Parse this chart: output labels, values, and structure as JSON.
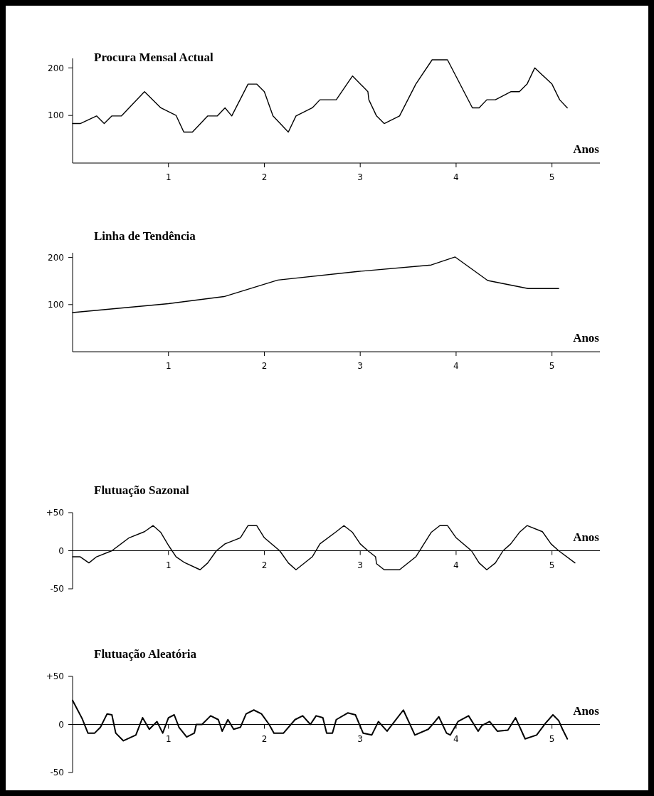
{
  "chart_data": [
    {
      "type": "line",
      "title": "Procura Mensal Actual",
      "xlabel": "Anos",
      "color": "#000000",
      "xlim": [
        0,
        5.5
      ],
      "xticks": [
        1,
        2,
        3,
        4,
        5
      ],
      "ylim": [
        0,
        220
      ],
      "yticks": [
        100,
        200
      ],
      "x": [
        0,
        0.08,
        0.25,
        0.33,
        0.41,
        0.51,
        0.75,
        0.92,
        1.08,
        1.16,
        1.25,
        1.41,
        1.51,
        1.59,
        1.66,
        1.83,
        1.92,
        2.0,
        2.09,
        2.25,
        2.33,
        2.5,
        2.58,
        2.75,
        2.92,
        3.08,
        3.09,
        3.17,
        3.25,
        3.41,
        3.58,
        3.75,
        3.91,
        4.17,
        4.24,
        4.32,
        4.41,
        4.57,
        4.66,
        4.74,
        4.82,
        5.0,
        5.08,
        5.16
      ],
      "values": [
        83,
        83,
        99,
        83,
        99,
        99,
        150,
        116,
        100,
        65,
        65,
        99,
        99,
        116,
        99,
        166,
        166,
        150,
        99,
        65,
        99,
        116,
        133,
        133,
        183,
        150,
        133,
        99,
        83,
        99,
        166,
        217,
        217,
        116,
        116,
        133,
        133,
        150,
        150,
        166,
        200,
        166,
        133,
        116
      ]
    },
    {
      "type": "line",
      "title": "Linha de Tendência",
      "xlabel": "Anos",
      "color": "#000000",
      "xlim": [
        0,
        5.5
      ],
      "xticks": [
        1,
        2,
        3,
        4,
        5
      ],
      "ylim": [
        0,
        210
      ],
      "yticks": [
        100,
        200
      ],
      "x": [
        0,
        1,
        1.58,
        2.14,
        2.96,
        3.74,
        3.99,
        4.33,
        4.75,
        5.07
      ],
      "values": [
        83,
        102,
        117,
        152,
        170,
        184,
        201,
        151,
        134,
        134
      ]
    },
    {
      "type": "line",
      "title": "Flutuação Sazonal",
      "xlabel": "Anos",
      "color": "#000000",
      "xlim": [
        0,
        5.5
      ],
      "xticks": [
        1,
        2,
        3,
        4,
        5
      ],
      "ylim": [
        -50,
        50
      ],
      "yticks": [
        {
          "value": 50,
          "label": "+50"
        },
        0,
        -50
      ],
      "x": [
        0,
        0.08,
        0.17,
        0.25,
        0.41,
        0.59,
        0.75,
        0.84,
        0.92,
        1.0,
        1.08,
        1.16,
        1.33,
        1.41,
        1.5,
        1.59,
        1.75,
        1.83,
        1.92,
        2.0,
        2.16,
        2.25,
        2.33,
        2.5,
        2.58,
        2.75,
        2.83,
        2.92,
        3.0,
        3.08,
        3.16,
        3.17,
        3.25,
        3.41,
        3.58,
        3.74,
        3.83,
        3.91,
        4.0,
        4.16,
        4.24,
        4.32,
        4.41,
        4.49,
        4.57,
        4.66,
        4.74,
        4.9,
        4.99,
        5.07,
        5.24
      ],
      "values": [
        -8,
        -8,
        -16,
        -8,
        0,
        17,
        25,
        33,
        24,
        7,
        -8,
        -15,
        -25,
        -16,
        0,
        9,
        17,
        33,
        33,
        17,
        0,
        -16,
        -25,
        -8,
        9,
        25,
        33,
        24,
        9,
        0,
        -8,
        -17,
        -25,
        -25,
        -8,
        24,
        33,
        33,
        17,
        0,
        -16,
        -25,
        -16,
        0,
        9,
        24,
        33,
        25,
        9,
        0,
        -16
      ]
    },
    {
      "type": "line",
      "title": "Flutuação Aleatória",
      "xlabel": "Anos",
      "color": "#000000",
      "xlim": [
        0,
        5.5
      ],
      "xticks": [
        1,
        2,
        3,
        4,
        5
      ],
      "ylim": [
        -50,
        50
      ],
      "yticks": [
        {
          "value": 50,
          "label": "+50"
        },
        0,
        -50
      ],
      "x": [
        0,
        0.1,
        0.16,
        0.23,
        0.29,
        0.36,
        0.41,
        0.45,
        0.53,
        0.66,
        0.73,
        0.8,
        0.88,
        0.94,
        1.0,
        1.06,
        1.11,
        1.19,
        1.27,
        1.29,
        1.35,
        1.44,
        1.52,
        1.56,
        1.62,
        1.68,
        1.75,
        1.81,
        1.89,
        1.97,
        2.05,
        2.1,
        2.2,
        2.32,
        2.4,
        2.48,
        2.54,
        2.61,
        2.65,
        2.71,
        2.75,
        2.87,
        2.95,
        3.03,
        3.12,
        3.19,
        3.28,
        3.45,
        3.57,
        3.71,
        3.78,
        3.82,
        3.9,
        3.94,
        4.02,
        4.13,
        4.23,
        4.27,
        4.35,
        4.43,
        4.54,
        4.62,
        4.72,
        4.84,
        4.93,
        5.01,
        5.07,
        5.11,
        5.16
      ],
      "values": [
        25,
        6,
        -9,
        -9,
        -3,
        11,
        10,
        -9,
        -17,
        -11,
        7,
        -5,
        3,
        -9,
        7,
        10,
        -3,
        -13,
        -9,
        0,
        0,
        9,
        5,
        -7,
        5,
        -5,
        -3,
        11,
        15,
        11,
        0,
        -9,
        -9,
        5,
        9,
        0,
        9,
        7,
        -9,
        -9,
        5,
        12,
        10,
        -9,
        -11,
        3,
        -7,
        15,
        -11,
        -5,
        3,
        8,
        -9,
        -11,
        3,
        9,
        -7,
        -1,
        3,
        -7,
        -6,
        7,
        -15,
        -11,
        1,
        10,
        4,
        -5,
        -15
      ]
    }
  ]
}
